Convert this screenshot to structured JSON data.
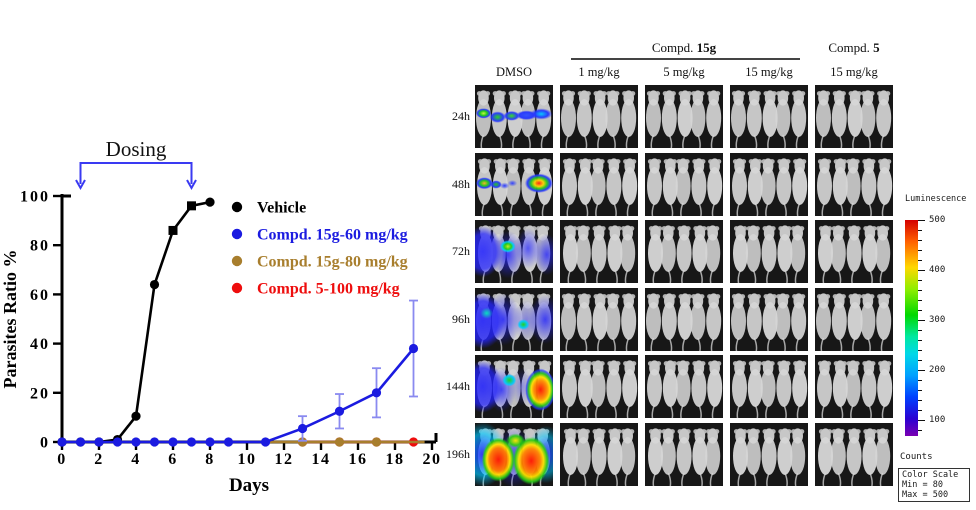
{
  "chart_data": {
    "type": "line",
    "title": "",
    "xlabel": "Days",
    "ylabel": "Parasites Ratio %",
    "xlim": [
      0,
      20
    ],
    "ylim": [
      0,
      100
    ],
    "xticks": [
      0,
      2,
      4,
      6,
      8,
      10,
      12,
      14,
      16,
      18,
      20
    ],
    "yticks": [
      0,
      20,
      40,
      60,
      80,
      100
    ],
    "grid": false,
    "legend_position": "upper-right-inside",
    "dosing_annotation": {
      "label": "Dosing",
      "day_start": 1,
      "day_end": 7,
      "color": "#3a3af2"
    },
    "series": [
      {
        "name": "Compd. 5-100 mg/kg",
        "color": "#ee0d0d",
        "x": [
          13,
          15,
          17,
          19
        ],
        "y": [
          0,
          0,
          0,
          0
        ]
      },
      {
        "name": "Compd. 15g-80 mg/kg",
        "color": "#a87e2d",
        "x": [
          11,
          13,
          15,
          17,
          19.6
        ],
        "y": [
          0,
          0,
          0,
          0,
          0
        ],
        "marker_days": [
          13,
          15,
          17,
          19
        ]
      },
      {
        "name": "Vehicle",
        "color": "#000000",
        "x": [
          0,
          1,
          2,
          3,
          4,
          5,
          6,
          7,
          8
        ],
        "y": [
          0,
          0,
          0,
          1,
          10.5,
          64,
          86,
          96,
          97.5
        ],
        "square_marker_days": [
          6,
          7
        ]
      },
      {
        "name": "Compd. 15g-60 mg/kg",
        "color": "#1b1be0",
        "x": [
          0,
          1,
          2,
          3,
          4,
          5,
          6,
          7,
          8,
          9,
          11,
          13,
          15,
          17,
          19
        ],
        "y": [
          0,
          0,
          0,
          0,
          0,
          0,
          0,
          0,
          0,
          0,
          0,
          5.5,
          12.5,
          20,
          38
        ],
        "yerr": [
          0,
          0,
          0,
          0,
          0,
          0,
          0,
          0,
          0,
          0,
          0,
          5,
          7,
          10,
          19.5
        ],
        "errbar_color": "#8a8af0"
      }
    ],
    "legend": [
      {
        "label": "Vehicle",
        "color": "#000000"
      },
      {
        "label": "Compd. 15g-60 mg/kg",
        "color": "#1b1be0"
      },
      {
        "label": "Compd. 15g-80 mg/kg",
        "color": "#a87e2d"
      },
      {
        "label": "Compd. 5-100 mg/kg",
        "color": "#ee0d0d"
      }
    ]
  },
  "imaging_panel": {
    "group_headers": [
      {
        "prefix": "Compd. ",
        "name": "15g"
      },
      {
        "prefix": "Compd. ",
        "name": "5"
      }
    ],
    "column_labels": [
      "DMSO",
      "1 mg/kg",
      "5 mg/kg",
      "15 mg/kg",
      "15 mg/kg"
    ],
    "row_labels": [
      "24h",
      "48h",
      "72h",
      "96h",
      "144h",
      "196h"
    ],
    "mice_per_image": 5,
    "colorbar": {
      "title": "Luminescence",
      "tick_labels": [
        "500",
        "400",
        "300",
        "200",
        "100"
      ],
      "footer_label": "Counts",
      "scale_box": [
        "Color Scale",
        "Min = 80",
        "Max = 500"
      ]
    }
  }
}
